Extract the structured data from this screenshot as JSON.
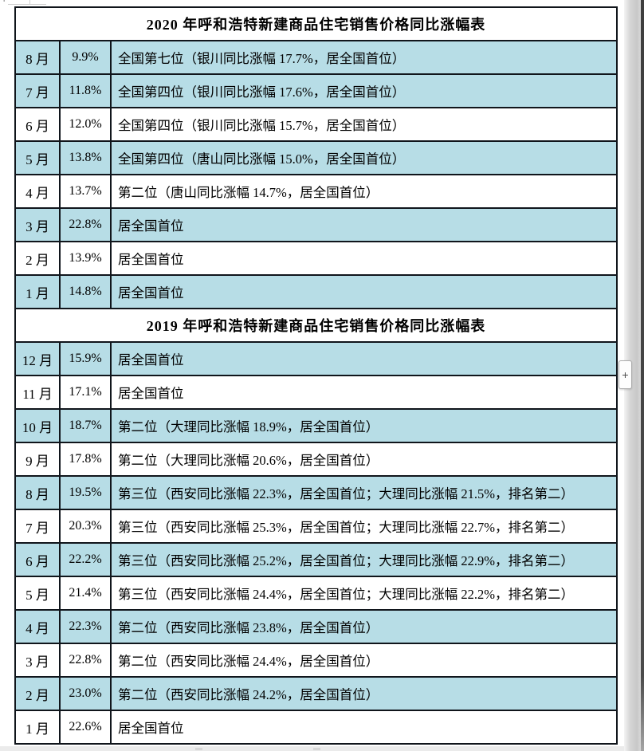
{
  "colors": {
    "highlight_row": "#b7dde6",
    "table_border": "#10151b",
    "page_background": "#ffffff"
  },
  "window": {
    "plus_button_label": "+"
  },
  "tables": [
    {
      "title": "2020 年呼和浩特新建商品住宅销售价格同比涨幅表",
      "rows": [
        {
          "month": "8 月",
          "rate": "9.9%",
          "note": "全国第七位（银川同比涨幅 17.7%，居全国首位）",
          "highlight": true
        },
        {
          "month": "7 月",
          "rate": "11.8%",
          "note": "全国第四位（银川同比涨幅 17.6%，居全国首位）",
          "highlight": true
        },
        {
          "month": "6 月",
          "rate": "12.0%",
          "note": "全国第四位（银川同比涨幅 15.7%，居全国首位）",
          "highlight": false
        },
        {
          "month": "5 月",
          "rate": "13.8%",
          "note": "全国第四位（唐山同比涨幅 15.0%，居全国首位）",
          "highlight": true
        },
        {
          "month": "4 月",
          "rate": "13.7%",
          "note": "第二位（唐山同比涨幅 14.7%，居全国首位）",
          "highlight": false
        },
        {
          "month": "3 月",
          "rate": "22.8%",
          "note": "居全国首位",
          "highlight": true
        },
        {
          "month": "2 月",
          "rate": "13.9%",
          "note": "居全国首位",
          "highlight": false
        },
        {
          "month": "1 月",
          "rate": "14.8%",
          "note": "居全国首位",
          "highlight": true
        }
      ]
    },
    {
      "title": "2019 年呼和浩特新建商品住宅销售价格同比涨幅表",
      "rows": [
        {
          "month": "12 月",
          "rate": "15.9%",
          "note": "居全国首位",
          "highlight": true
        },
        {
          "month": "11 月",
          "rate": "17.1%",
          "note": "居全国首位",
          "highlight": false
        },
        {
          "month": "10 月",
          "rate": "18.7%",
          "note": "第二位（大理同比涨幅 18.9%，居全国首位）",
          "highlight": true
        },
        {
          "month": "9 月",
          "rate": "17.8%",
          "note": "第二位（大理同比涨幅 20.6%，居全国首位）",
          "highlight": false
        },
        {
          "month": "8 月",
          "rate": "19.5%",
          "note": "第三位（西安同比涨幅 22.3%，居全国首位；大理同比涨幅 21.5%，排名第二）",
          "highlight": true
        },
        {
          "month": "7 月",
          "rate": "20.3%",
          "note": "第三位（西安同比涨幅 25.3%，居全国首位；大理同比涨幅 22.7%，排名第二）",
          "highlight": false
        },
        {
          "month": "6 月",
          "rate": "22.2%",
          "note": "第三位（西安同比涨幅 25.2%，居全国首位；大理同比涨幅 22.9%，排名第二）",
          "highlight": true
        },
        {
          "month": "5 月",
          "rate": "21.4%",
          "note": "第三位（西安同比涨幅 24.4%，居全国首位；大理同比涨幅 22.2%，排名第二）",
          "highlight": false
        },
        {
          "month": "4 月",
          "rate": "22.3%",
          "note": "第二位（西安同比涨幅 23.8%，居全国首位）",
          "highlight": true
        },
        {
          "month": "3 月",
          "rate": "22.8%",
          "note": "第二位（西安同比涨幅 24.4%，居全国首位）",
          "highlight": false
        },
        {
          "month": "2 月",
          "rate": "23.0%",
          "note": "第二位（西安同比涨幅 24.2%，居全国首位）",
          "highlight": true
        },
        {
          "month": "1 月",
          "rate": "22.6%",
          "note": "居全国首位",
          "highlight": false
        }
      ]
    }
  ]
}
